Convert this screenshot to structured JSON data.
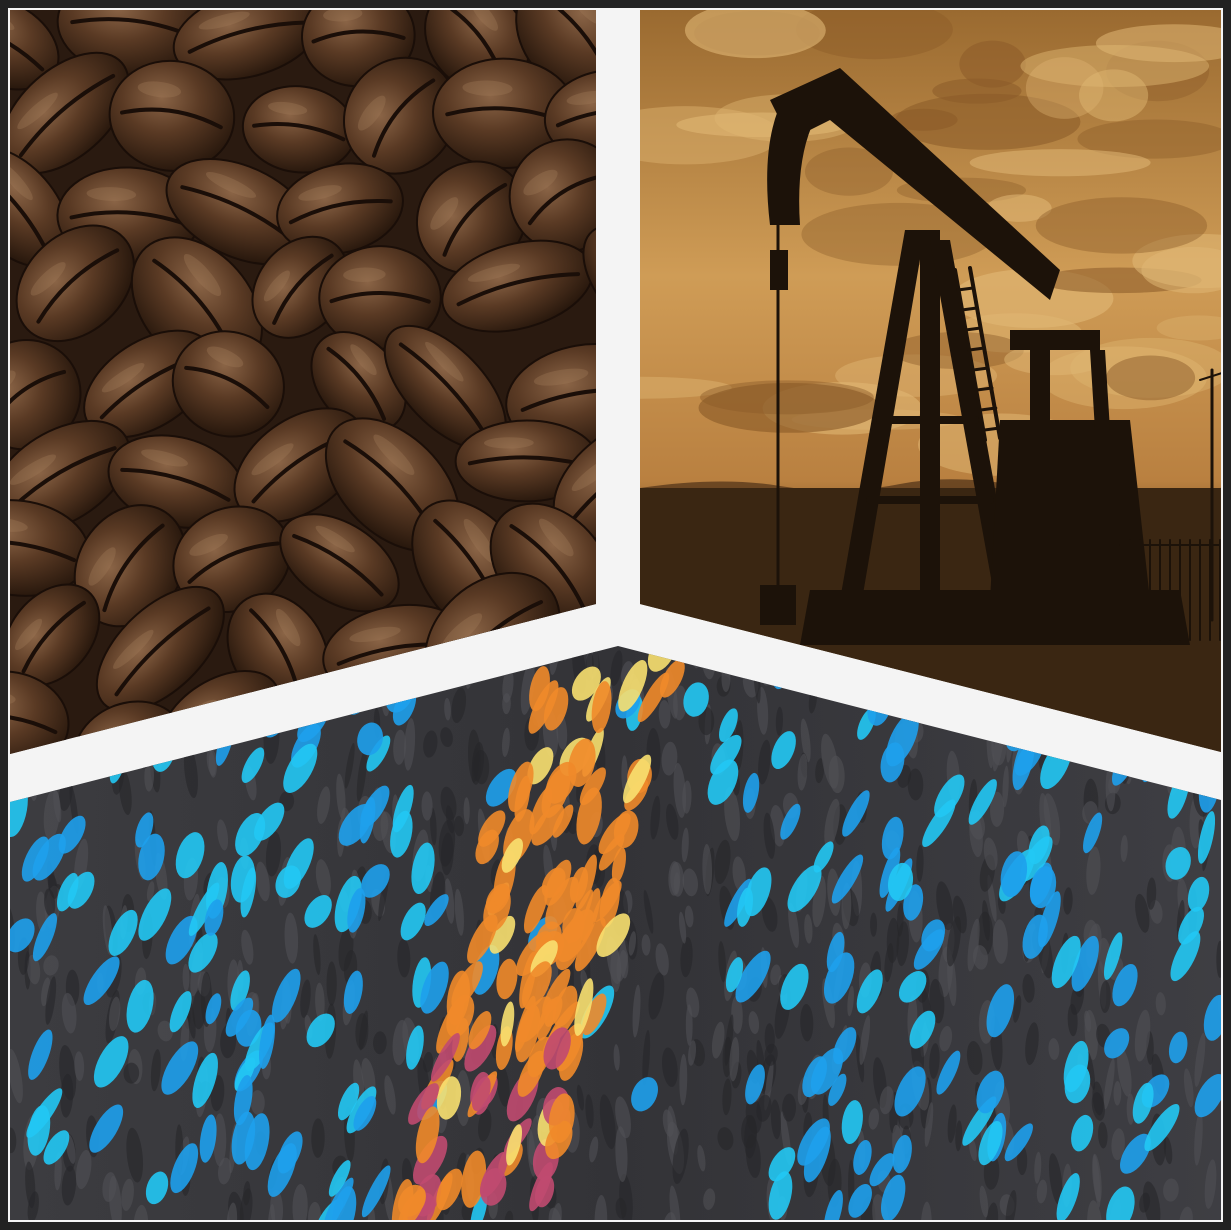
{
  "panels": [
    {
      "subject": "coffee-beans",
      "palette": {
        "bg": "#2a1a10",
        "bean": "#4a2e1e",
        "highlight": "#a07c5a",
        "crack": "#1a0e08"
      }
    },
    {
      "subject": "oil-pumpjack",
      "palette": {
        "sky_top": "#a87432",
        "sky_mid": "#cf9a52",
        "sky_low": "#8a5a28",
        "ground": "#3a2612",
        "silhouette": "#1c1209"
      }
    },
    {
      "subject": "microscopy-cells",
      "palette": {
        "bg": "#3a3a3e",
        "cell_blue": "#1ea0ec",
        "cell_cyan": "#22c8f4",
        "cell_orange": "#f08a2a",
        "cell_yellow": "#f8e070",
        "cell_magenta": "#c04a70"
      }
    }
  ],
  "frame": {
    "border_color": "#222222",
    "divider_color": "#f4f4f4"
  }
}
